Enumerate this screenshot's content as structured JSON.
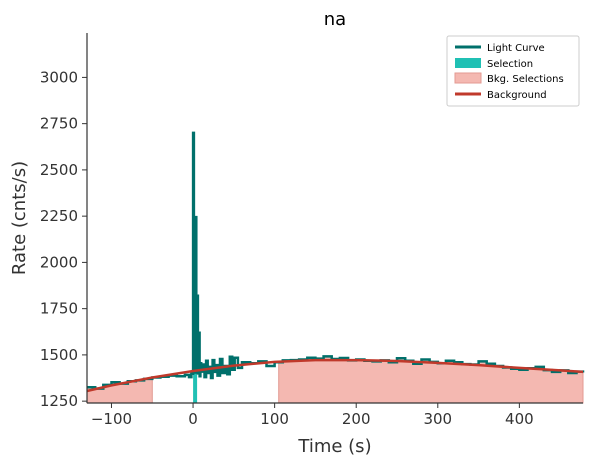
{
  "chart_data": {
    "type": "line",
    "title": "na",
    "xlabel": "Time (s)",
    "ylabel": "Rate (cnts/s)",
    "xlim": [
      -130,
      478
    ],
    "ylim": [
      1240,
      3240
    ],
    "xticks": [
      -100,
      0,
      100,
      200,
      300,
      400
    ],
    "yticks": [
      1250,
      1500,
      1750,
      2000,
      2250,
      2500,
      2750,
      3000
    ],
    "grid": false,
    "legend_position": "top-right",
    "legend": [
      {
        "label": "Light Curve",
        "kind": "line"
      },
      {
        "label": "Selection",
        "kind": "patch"
      },
      {
        "label": "Bkg. Selections",
        "kind": "patch"
      },
      {
        "label": "Background",
        "kind": "line"
      }
    ],
    "colors": {
      "light_curve": "#00706b",
      "selection": "#20c0b4",
      "bkg_fill": "#f4b8b1",
      "bkg_edge": "#e39a92",
      "background": "#c0392b",
      "axis": "#333333"
    },
    "selection_interval": [
      0,
      5
    ],
    "bkg_intervals": [
      [
        -130,
        -50
      ],
      [
        105,
        478
      ]
    ],
    "background_model": {
      "x": [
        -130,
        -100,
        -50,
        0,
        50,
        100,
        150,
        200,
        250,
        300,
        350,
        400,
        450,
        478
      ],
      "y": [
        1305,
        1335,
        1378,
        1413,
        1442,
        1462,
        1472,
        1472,
        1467,
        1457,
        1445,
        1430,
        1416,
        1408
      ]
    },
    "light_curve": {
      "x": [
        -130,
        -120,
        -110,
        -100,
        -90,
        -80,
        -70,
        -60,
        -50,
        -40,
        -30,
        -20,
        -10,
        -5,
        -2,
        0,
        1,
        2,
        3,
        4,
        5,
        6,
        7,
        8,
        9,
        10,
        12,
        14,
        16,
        18,
        20,
        22,
        24,
        26,
        28,
        30,
        33,
        36,
        39,
        42,
        45,
        48,
        51,
        55,
        60,
        70,
        80,
        90,
        100,
        110,
        120,
        130,
        140,
        150,
        160,
        170,
        180,
        190,
        200,
        210,
        220,
        230,
        240,
        250,
        260,
        270,
        280,
        290,
        300,
        310,
        320,
        330,
        340,
        350,
        360,
        370,
        380,
        390,
        400,
        410,
        420,
        430,
        440,
        450,
        460,
        470,
        478
      ],
      "y": [
        1325,
        1318,
        1338,
        1352,
        1345,
        1358,
        1362,
        1370,
        1378,
        1382,
        1388,
        1385,
        1392,
        1380,
        1398,
        2700,
        1880,
        1405,
        2245,
        1560,
        1820,
        1400,
        1620,
        1385,
        1455,
        1410,
        1448,
        1380,
        1468,
        1402,
        1435,
        1375,
        1472,
        1408,
        1445,
        1388,
        1478,
        1402,
        1440,
        1395,
        1490,
        1420,
        1485,
        1430,
        1460,
        1455,
        1465,
        1440,
        1460,
        1470,
        1472,
        1475,
        1485,
        1480,
        1492,
        1478,
        1483,
        1470,
        1475,
        1468,
        1465,
        1470,
        1460,
        1482,
        1468,
        1452,
        1475,
        1462,
        1455,
        1468,
        1460,
        1450,
        1448,
        1465,
        1452,
        1440,
        1432,
        1425,
        1420,
        1428,
        1435,
        1418,
        1408,
        1416,
        1402,
        1410,
        1405
      ]
    }
  }
}
